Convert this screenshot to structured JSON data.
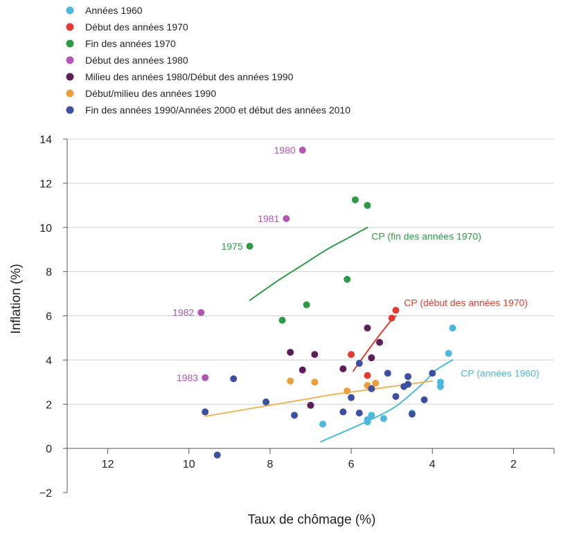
{
  "chart_data": {
    "type": "scatter",
    "xlabel": "Taux de chômage (%)",
    "ylabel": "Inflation (%)",
    "xlim": [
      13,
      1
    ],
    "ylim": [
      -2,
      14
    ],
    "x_reversed": true,
    "x_ticks": [
      12,
      10,
      8,
      6,
      4,
      2
    ],
    "y_ticks": [
      14,
      12,
      10,
      8,
      6,
      4,
      2,
      0,
      -2
    ],
    "grid": "horizontal",
    "legend_position": "top-left",
    "series": [
      {
        "name": "Années 1960",
        "color": "#4bb8e0",
        "points": [
          [
            6.7,
            1.1
          ],
          [
            5.6,
            1.2
          ],
          [
            5.6,
            1.3
          ],
          [
            5.5,
            1.5
          ],
          [
            5.2,
            1.35
          ],
          [
            4.5,
            1.6
          ],
          [
            3.8,
            2.8
          ],
          [
            3.8,
            3.0
          ],
          [
            3.6,
            4.3
          ],
          [
            3.5,
            5.45
          ]
        ]
      },
      {
        "name": "Début des années 1970",
        "color": "#e53a2f",
        "points": [
          [
            6.0,
            4.25
          ],
          [
            5.6,
            3.3
          ],
          [
            5.0,
            5.9
          ],
          [
            4.9,
            6.25
          ]
        ]
      },
      {
        "name": "Fin des années 1970",
        "color": "#2e9a48",
        "points": [
          [
            8.5,
            9.15
          ],
          [
            7.7,
            5.8
          ],
          [
            7.1,
            6.5
          ],
          [
            6.1,
            7.65
          ],
          [
            5.9,
            11.25
          ],
          [
            5.6,
            11.0
          ]
        ]
      },
      {
        "name": "Début des années 1980",
        "color": "#b455b6",
        "points": [
          [
            7.2,
            13.5
          ],
          [
            7.6,
            10.4
          ],
          [
            9.7,
            6.15
          ],
          [
            9.6,
            3.2
          ]
        ]
      },
      {
        "name": "Milieu des années 1980/Début des années 1990",
        "color": "#5c1f5c",
        "points": [
          [
            7.5,
            4.35
          ],
          [
            7.2,
            3.55
          ],
          [
            6.9,
            4.25
          ],
          [
            7.0,
            1.95
          ],
          [
            6.2,
            3.6
          ],
          [
            5.6,
            5.45
          ],
          [
            5.5,
            4.1
          ],
          [
            5.3,
            4.8
          ]
        ]
      },
      {
        "name": "Début/milieu des années 1990",
        "color": "#e8a03a",
        "points": [
          [
            7.5,
            3.05
          ],
          [
            6.9,
            3.0
          ],
          [
            6.1,
            2.6
          ],
          [
            5.6,
            2.85
          ],
          [
            5.4,
            2.95
          ]
        ]
      },
      {
        "name": "Fin des années 1990/Années 2000 et début des années 2010",
        "color": "#3d4fa0",
        "points": [
          [
            9.6,
            1.65
          ],
          [
            9.3,
            -0.3
          ],
          [
            8.9,
            3.15
          ],
          [
            8.1,
            2.1
          ],
          [
            7.4,
            1.5
          ],
          [
            6.2,
            1.65
          ],
          [
            6.0,
            2.3
          ],
          [
            5.8,
            3.85
          ],
          [
            5.8,
            1.6
          ],
          [
            5.5,
            2.7
          ],
          [
            5.1,
            3.4
          ],
          [
            4.9,
            2.35
          ],
          [
            4.7,
            2.8
          ],
          [
            4.6,
            2.9
          ],
          [
            4.6,
            3.25
          ],
          [
            4.5,
            1.55
          ],
          [
            4.2,
            2.2
          ],
          [
            4.0,
            3.4
          ]
        ]
      }
    ],
    "curves": [
      {
        "name": "CP (fin des années 1970)",
        "color": "#2e9a48",
        "points": [
          [
            8.5,
            6.7
          ],
          [
            7.8,
            7.6
          ],
          [
            7.2,
            8.3
          ],
          [
            6.6,
            9.0
          ],
          [
            6.1,
            9.5
          ],
          [
            5.6,
            10.0
          ]
        ]
      },
      {
        "name": "CP (début des années 1970)",
        "color": "#e53a2f",
        "points": [
          [
            5.95,
            3.5
          ],
          [
            5.5,
            4.65
          ],
          [
            5.1,
            5.6
          ],
          [
            4.9,
            6.0
          ]
        ]
      },
      {
        "name": "CP (années 1960)",
        "color": "#4bb8e0",
        "points": [
          [
            6.75,
            0.3
          ],
          [
            6.0,
            0.9
          ],
          [
            5.4,
            1.4
          ],
          [
            4.9,
            1.9
          ],
          [
            4.5,
            2.5
          ],
          [
            4.2,
            3.0
          ],
          [
            3.9,
            3.55
          ],
          [
            3.5,
            4.0
          ]
        ]
      },
      {
        "name": "",
        "color": "#e8b55a",
        "points": [
          [
            9.6,
            1.45
          ],
          [
            8.8,
            1.7
          ],
          [
            8.0,
            1.95
          ],
          [
            7.2,
            2.2
          ],
          [
            6.4,
            2.45
          ],
          [
            5.6,
            2.65
          ],
          [
            4.8,
            2.85
          ],
          [
            4.0,
            3.05
          ]
        ]
      }
    ],
    "annotations": [
      {
        "text": "1980",
        "color": "#b455b6",
        "x": 7.2,
        "y": 13.5
      },
      {
        "text": "1981",
        "color": "#b455b6",
        "x": 7.6,
        "y": 10.4
      },
      {
        "text": "1975",
        "color": "#2e9a48",
        "x": 8.5,
        "y": 9.15
      },
      {
        "text": "1982",
        "color": "#b455b6",
        "x": 9.7,
        "y": 6.15
      },
      {
        "text": "1983",
        "color": "#b455b6",
        "x": 9.6,
        "y": 3.2
      },
      {
        "text": "CP (fin des années 1970)",
        "color": "#2e9a48",
        "x": 5.5,
        "y": 9.6
      },
      {
        "text": "CP (début des années 1970)",
        "color": "#e53a2f",
        "x": 4.7,
        "y": 6.6
      },
      {
        "text": "CP (années 1960)",
        "color": "#4bb8e0",
        "x": 3.3,
        "y": 3.4
      }
    ]
  }
}
